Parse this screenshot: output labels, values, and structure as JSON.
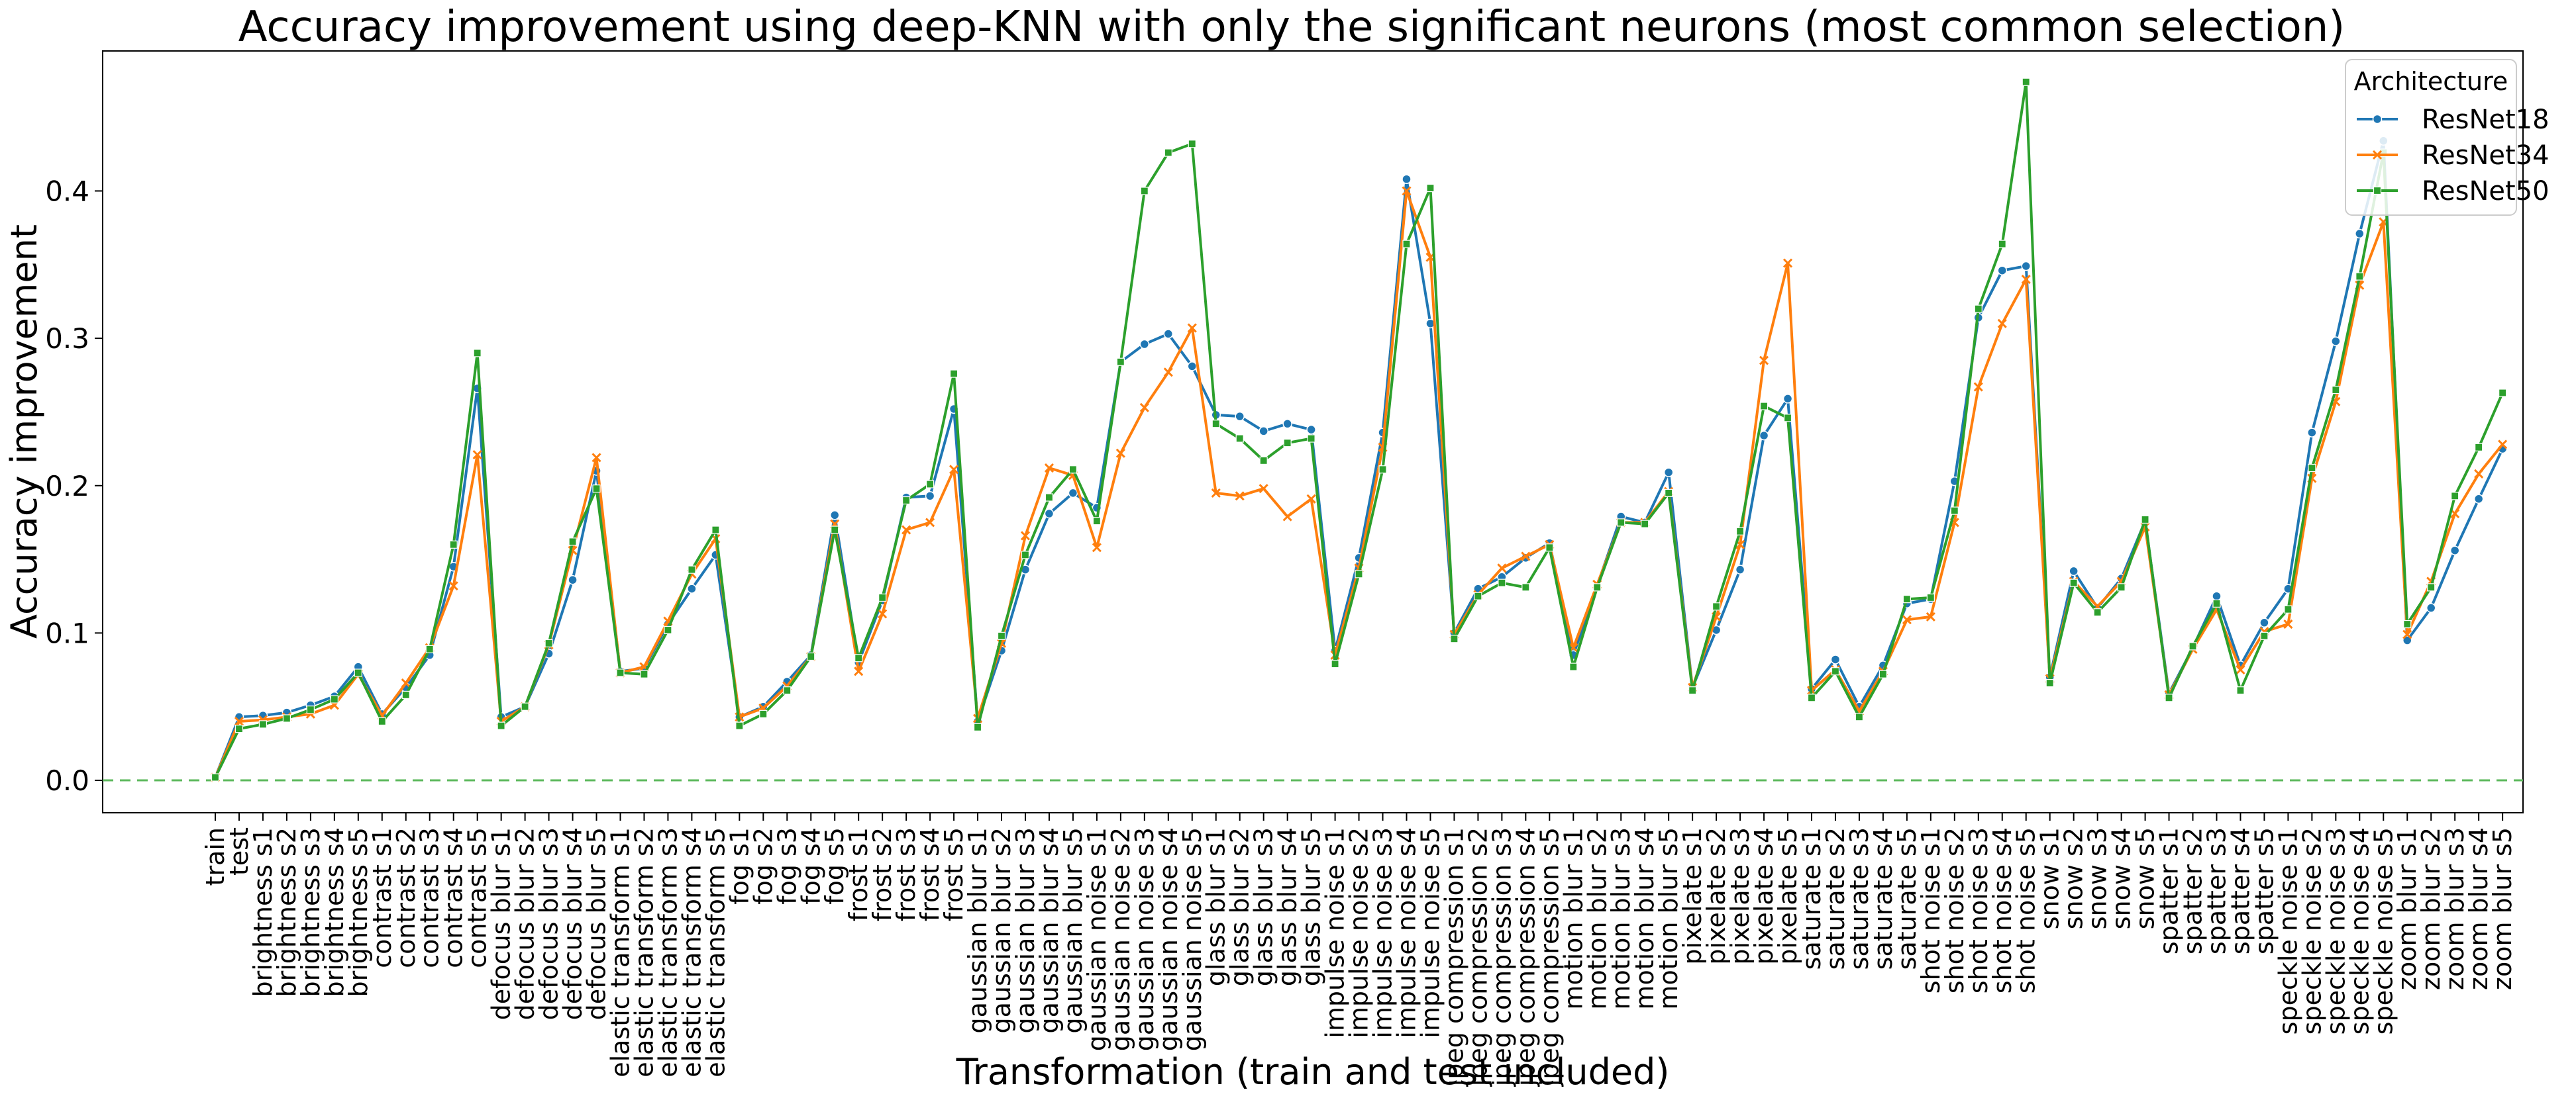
{
  "chart_data": {
    "type": "line",
    "title": "Accuracy improvement using deep-KNN with only the significant neurons (most common selection)",
    "xlabel": "Transformation (train and test included)",
    "ylabel": "Accuracy improvement",
    "ylim": [
      -0.022,
      0.495
    ],
    "yticks": [
      0.0,
      0.1,
      0.2,
      0.3,
      0.4
    ],
    "ytick_labels": [
      "0.0",
      "0.1",
      "0.2",
      "0.3",
      "0.4"
    ],
    "grid": false,
    "reference_line": {
      "y": 0.0,
      "style": "dashed",
      "color": "#5cb85c"
    },
    "legend": {
      "title": "Architecture",
      "placement": "top-right"
    },
    "categories": [
      "train",
      "test",
      "brightness s1",
      "brightness s2",
      "brightness s3",
      "brightness s4",
      "brightness s5",
      "contrast s1",
      "contrast s2",
      "contrast s3",
      "contrast s4",
      "contrast s5",
      "defocus blur s1",
      "defocus blur s2",
      "defocus blur s3",
      "defocus blur s4",
      "defocus blur s5",
      "elastic transform s1",
      "elastic transform s2",
      "elastic transform s3",
      "elastic transform s4",
      "elastic transform s5",
      "fog s1",
      "fog s2",
      "fog s3",
      "fog s4",
      "fog s5",
      "frost s1",
      "frost s2",
      "frost s3",
      "frost s4",
      "frost s5",
      "gaussian blur s1",
      "gaussian blur s2",
      "gaussian blur s3",
      "gaussian blur s4",
      "gaussian blur s5",
      "gaussian noise s1",
      "gaussian noise s2",
      "gaussian noise s3",
      "gaussian noise s4",
      "gaussian noise s5",
      "glass blur s1",
      "glass blur s2",
      "glass blur s3",
      "glass blur s4",
      "glass blur s5",
      "impulse noise s1",
      "impulse noise s2",
      "impulse noise s3",
      "impulse noise s4",
      "impulse noise s5",
      "jpeg compression s1",
      "jpeg compression s2",
      "jpeg compression s3",
      "jpeg compression s4",
      "jpeg compression s5",
      "motion blur s1",
      "motion blur s2",
      "motion blur s3",
      "motion blur s4",
      "motion blur s5",
      "pixelate s1",
      "pixelate s2",
      "pixelate s3",
      "pixelate s4",
      "pixelate s5",
      "saturate s1",
      "saturate s2",
      "saturate s3",
      "saturate s4",
      "saturate s5",
      "shot noise s1",
      "shot noise s2",
      "shot noise s3",
      "shot noise s4",
      "shot noise s5",
      "snow s1",
      "snow s2",
      "snow s3",
      "snow s4",
      "snow s5",
      "spatter s1",
      "spatter s2",
      "spatter s3",
      "spatter s4",
      "spatter s5",
      "speckle noise s1",
      "speckle noise s2",
      "speckle noise s3",
      "speckle noise s4",
      "speckle noise s5",
      "zoom blur s1",
      "zoom blur s2",
      "zoom blur s3",
      "zoom blur s4",
      "zoom blur s5"
    ],
    "series": [
      {
        "name": "ResNet18",
        "color": "#1f77b4",
        "marker": "circle",
        "values": [
          0.002,
          0.043,
          0.044,
          0.046,
          0.051,
          0.057,
          0.077,
          0.045,
          0.063,
          0.085,
          0.145,
          0.266,
          0.043,
          0.05,
          0.086,
          0.136,
          0.21,
          0.074,
          0.076,
          0.106,
          0.13,
          0.153,
          0.043,
          0.05,
          0.067,
          0.085,
          0.18,
          0.08,
          0.122,
          0.192,
          0.193,
          0.252,
          0.04,
          0.088,
          0.143,
          0.181,
          0.195,
          0.185,
          0.284,
          0.296,
          0.303,
          0.281,
          0.248,
          0.247,
          0.237,
          0.242,
          0.238,
          0.088,
          0.151,
          0.236,
          0.408,
          0.31,
          0.1,
          0.13,
          0.138,
          0.151,
          0.161,
          0.085,
          0.132,
          0.179,
          0.175,
          0.209,
          0.063,
          0.102,
          0.143,
          0.234,
          0.259,
          0.062,
          0.082,
          0.05,
          0.078,
          0.12,
          0.123,
          0.203,
          0.314,
          0.346,
          0.349,
          0.07,
          0.142,
          0.117,
          0.137,
          0.176,
          0.059,
          0.09,
          0.125,
          0.078,
          0.107,
          0.13,
          0.236,
          0.298,
          0.371,
          0.434,
          0.095,
          0.117,
          0.156,
          0.191,
          0.225
        ]
      },
      {
        "name": "ResNet34",
        "color": "#ff7f0e",
        "marker": "x",
        "values": [
          0.002,
          0.04,
          0.041,
          0.043,
          0.045,
          0.051,
          0.072,
          0.044,
          0.066,
          0.09,
          0.132,
          0.221,
          0.04,
          0.05,
          0.092,
          0.156,
          0.219,
          0.073,
          0.077,
          0.108,
          0.14,
          0.164,
          0.043,
          0.049,
          0.064,
          0.084,
          0.174,
          0.074,
          0.113,
          0.17,
          0.175,
          0.211,
          0.042,
          0.093,
          0.166,
          0.212,
          0.207,
          0.158,
          0.222,
          0.253,
          0.277,
          0.307,
          0.195,
          0.193,
          0.198,
          0.179,
          0.191,
          0.085,
          0.144,
          0.226,
          0.4,
          0.355,
          0.099,
          0.126,
          0.144,
          0.152,
          0.16,
          0.09,
          0.133,
          0.175,
          0.175,
          0.196,
          0.063,
          0.111,
          0.16,
          0.285,
          0.351,
          0.061,
          0.075,
          0.047,
          0.074,
          0.109,
          0.111,
          0.175,
          0.267,
          0.31,
          0.34,
          0.069,
          0.135,
          0.118,
          0.135,
          0.172,
          0.058,
          0.089,
          0.116,
          0.075,
          0.101,
          0.106,
          0.205,
          0.257,
          0.336,
          0.379,
          0.099,
          0.135,
          0.181,
          0.208,
          0.228
        ]
      },
      {
        "name": "ResNet50",
        "color": "#2ca02c",
        "marker": "square",
        "values": [
          0.002,
          0.035,
          0.038,
          0.042,
          0.048,
          0.055,
          0.073,
          0.04,
          0.058,
          0.089,
          0.16,
          0.29,
          0.037,
          0.05,
          0.093,
          0.162,
          0.198,
          0.073,
          0.072,
          0.102,
          0.143,
          0.17,
          0.037,
          0.045,
          0.061,
          0.084,
          0.17,
          0.083,
          0.124,
          0.19,
          0.201,
          0.276,
          0.036,
          0.098,
          0.153,
          0.192,
          0.211,
          0.176,
          0.284,
          0.4,
          0.426,
          0.432,
          0.242,
          0.232,
          0.217,
          0.229,
          0.232,
          0.079,
          0.14,
          0.211,
          0.364,
          0.402,
          0.096,
          0.125,
          0.134,
          0.131,
          0.158,
          0.077,
          0.131,
          0.175,
          0.174,
          0.195,
          0.061,
          0.118,
          0.169,
          0.254,
          0.246,
          0.056,
          0.074,
          0.043,
          0.072,
          0.123,
          0.124,
          0.183,
          0.32,
          0.364,
          0.474,
          0.066,
          0.134,
          0.114,
          0.131,
          0.177,
          0.056,
          0.091,
          0.12,
          0.061,
          0.098,
          0.116,
          0.212,
          0.265,
          0.342,
          0.426,
          0.106,
          0.131,
          0.193,
          0.226,
          0.263
        ]
      }
    ]
  }
}
